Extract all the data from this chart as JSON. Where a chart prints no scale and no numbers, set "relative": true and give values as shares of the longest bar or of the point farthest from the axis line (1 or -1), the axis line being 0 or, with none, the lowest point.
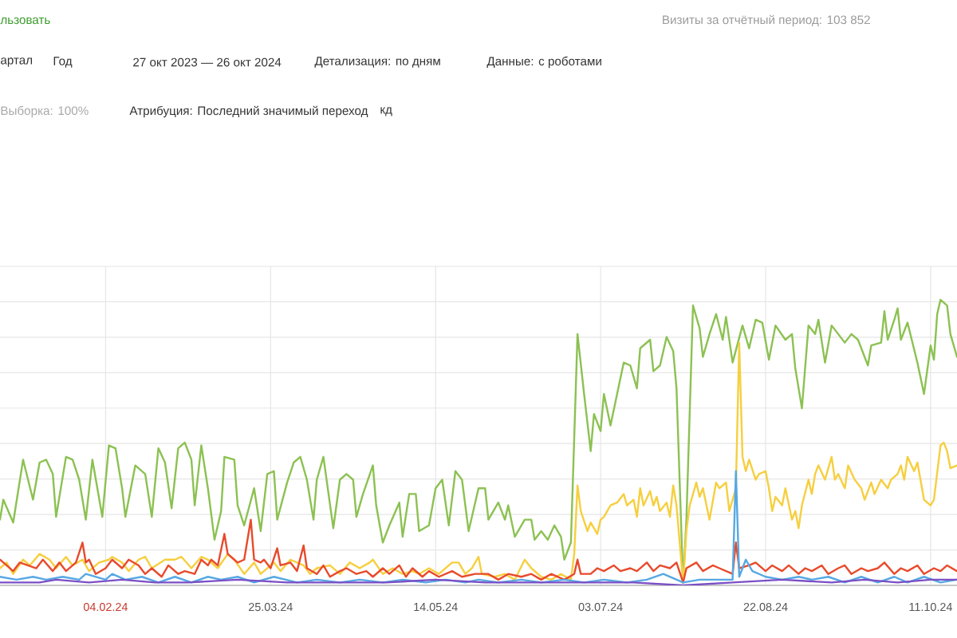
{
  "chart_data": {
    "type": "line",
    "relative": true,
    "grid": true,
    "xlim": [
      "2024-01-03",
      "2024-10-19"
    ],
    "xticks": [
      {
        "value": "2024-02-04",
        "label": "04.02.24"
      },
      {
        "value": "2024-03-25",
        "label": "25.03.24"
      },
      {
        "value": "2024-05-14",
        "label": "14.05.24"
      },
      {
        "value": "2024-07-03",
        "label": "03.07.24"
      },
      {
        "value": "2024-08-22",
        "label": "22.08.24"
      },
      {
        "value": "2024-10-11",
        "label": "11.10.24"
      }
    ],
    "annotations": [
      "льзовать",
      "Визиты за отчётный период: 103 852",
      "артал",
      "Год",
      "27 окт 2023 — 26 окт 2024",
      "Детализация: по дням",
      "Данные: с роботами",
      "Выборка: 100%",
      "Атрибуция: Последний значимый переход",
      "кд"
    ],
    "series": [
      {
        "color": "#8cc152",
        "x": [
          "2024-01-03",
          "2024-01-04",
          "2024-01-07",
          "2024-01-10",
          "2024-01-13",
          "2024-01-15",
          "2024-01-17",
          "2024-01-19",
          "2024-01-20",
          "2024-01-23",
          "2024-01-25",
          "2024-01-27",
          "2024-01-29",
          "2024-01-31",
          "2024-02-03",
          "2024-02-05",
          "2024-02-07",
          "2024-02-09",
          "2024-02-10",
          "2024-02-13",
          "2024-02-16",
          "2024-02-18",
          "2024-02-20",
          "2024-02-22",
          "2024-02-24",
          "2024-02-26",
          "2024-02-28",
          "2024-03-01",
          "2024-03-02",
          "2024-03-04",
          "2024-03-06",
          "2024-03-08",
          "2024-03-10",
          "2024-03-11",
          "2024-03-14",
          "2024-03-15",
          "2024-03-17",
          "2024-03-20",
          "2024-03-22",
          "2024-03-24",
          "2024-03-26",
          "2024-03-27",
          "2024-03-30",
          "2024-04-01",
          "2024-04-03",
          "2024-04-05",
          "2024-04-07",
          "2024-04-08",
          "2024-04-10",
          "2024-04-13",
          "2024-04-15",
          "2024-04-17",
          "2024-04-19",
          "2024-04-20",
          "2024-04-22",
          "2024-04-25",
          "2024-04-26",
          "2024-04-28",
          "2024-04-30",
          "2024-05-03",
          "2024-05-04",
          "2024-05-06",
          "2024-05-08",
          "2024-05-09",
          "2024-05-12",
          "2024-05-14",
          "2024-05-16",
          "2024-05-18",
          "2024-05-20",
          "2024-05-22",
          "2024-05-24",
          "2024-05-27",
          "2024-05-29",
          "2024-05-30",
          "2024-06-02",
          "2024-06-04",
          "2024-06-05",
          "2024-06-07",
          "2024-06-10",
          "2024-06-12",
          "2024-06-13",
          "2024-06-15",
          "2024-06-17",
          "2024-06-19",
          "2024-06-21",
          "2024-06-22",
          "2024-06-24",
          "2024-06-26",
          "2024-06-28",
          "2024-06-30",
          "2024-07-01",
          "2024-07-03",
          "2024-07-04",
          "2024-07-06",
          "2024-07-08",
          "2024-07-10",
          "2024-07-12",
          "2024-07-14",
          "2024-07-15",
          "2024-07-18",
          "2024-07-19",
          "2024-07-21",
          "2024-07-23",
          "2024-07-25",
          "2024-07-26",
          "2024-07-28",
          "2024-07-29",
          "2024-07-31",
          "2024-08-02",
          "2024-08-03",
          "2024-08-05",
          "2024-08-07",
          "2024-08-09",
          "2024-08-10",
          "2024-08-12",
          "2024-08-15",
          "2024-08-17",
          "2024-08-19",
          "2024-08-21",
          "2024-08-23",
          "2024-08-25",
          "2024-08-28",
          "2024-08-30",
          "2024-08-31",
          "2024-09-02",
          "2024-09-04",
          "2024-09-06",
          "2024-09-07",
          "2024-09-09",
          "2024-09-11",
          "2024-09-13",
          "2024-09-15",
          "2024-09-17",
          "2024-09-19",
          "2024-09-22",
          "2024-09-23",
          "2024-09-26",
          "2024-09-27",
          "2024-09-28",
          "2024-09-30",
          "2024-10-01",
          "2024-10-02",
          "2024-10-04",
          "2024-10-07",
          "2024-10-09",
          "2024-10-11",
          "2024-10-12",
          "2024-10-13",
          "2024-10-14",
          "2024-10-16",
          "2024-10-17",
          "2024-10-19"
        ],
        "values": [
          0.23,
          0.3,
          0.22,
          0.44,
          0.3,
          0.43,
          0.44,
          0.39,
          0.24,
          0.45,
          0.44,
          0.37,
          0.23,
          0.44,
          0.24,
          0.49,
          0.48,
          0.34,
          0.24,
          0.42,
          0.39,
          0.24,
          0.48,
          0.43,
          0.27,
          0.48,
          0.5,
          0.44,
          0.28,
          0.49,
          0.34,
          0.16,
          0.26,
          0.45,
          0.44,
          0.28,
          0.21,
          0.34,
          0.19,
          0.39,
          0.4,
          0.23,
          0.36,
          0.43,
          0.45,
          0.37,
          0.23,
          0.37,
          0.45,
          0.2,
          0.37,
          0.39,
          0.37,
          0.24,
          0.32,
          0.42,
          0.28,
          0.15,
          0.21,
          0.29,
          0.17,
          0.32,
          0.32,
          0.19,
          0.21,
          0.34,
          0.37,
          0.21,
          0.4,
          0.37,
          0.19,
          0.34,
          0.34,
          0.23,
          0.29,
          0.23,
          0.28,
          0.17,
          0.23,
          0.23,
          0.16,
          0.19,
          0.16,
          0.21,
          0.17,
          0.09,
          0.15,
          0.88,
          0.67,
          0.47,
          0.6,
          0.54,
          0.67,
          0.56,
          0.67,
          0.78,
          0.77,
          0.69,
          0.83,
          0.86,
          0.75,
          0.77,
          0.87,
          0.82,
          0.69,
          0.01,
          0.23,
          0.98,
          0.9,
          0.8,
          0.88,
          0.95,
          0.86,
          0.94,
          0.78,
          0.91,
          0.83,
          0.93,
          0.92,
          0.79,
          0.91,
          0.86,
          0.88,
          0.76,
          0.62,
          0.91,
          0.88,
          0.93,
          0.78,
          0.91,
          0.88,
          0.85,
          0.88,
          0.86,
          0.77,
          0.84,
          0.85,
          0.96,
          0.86,
          0.93,
          0.97,
          0.86,
          0.92,
          0.78,
          0.67,
          0.84,
          0.79,
          0.95,
          1.0,
          0.98,
          0.88,
          0.8
        ]
      },
      {
        "color": "#f6cf3f",
        "x": [
          "2024-01-03",
          "2024-01-05",
          "2024-01-07",
          "2024-01-10",
          "2024-01-12",
          "2024-01-15",
          "2024-01-18",
          "2024-01-20",
          "2024-01-23",
          "2024-01-25",
          "2024-01-28",
          "2024-01-30",
          "2024-02-02",
          "2024-02-05",
          "2024-02-06",
          "2024-02-09",
          "2024-02-11",
          "2024-02-14",
          "2024-02-16",
          "2024-02-18",
          "2024-02-22",
          "2024-02-25",
          "2024-02-27",
          "2024-03-01",
          "2024-03-04",
          "2024-03-06",
          "2024-03-09",
          "2024-03-12",
          "2024-03-14",
          "2024-03-17",
          "2024-03-20",
          "2024-03-22",
          "2024-03-26",
          "2024-03-28",
          "2024-03-31",
          "2024-04-04",
          "2024-04-06",
          "2024-04-08",
          "2024-04-12",
          "2024-04-15",
          "2024-04-18",
          "2024-04-21",
          "2024-04-24",
          "2024-04-25",
          "2024-04-28",
          "2024-05-01",
          "2024-05-04",
          "2024-05-07",
          "2024-05-09",
          "2024-05-12",
          "2024-05-15",
          "2024-05-19",
          "2024-05-21",
          "2024-05-23",
          "2024-05-25",
          "2024-05-27",
          "2024-05-28",
          "2024-06-01",
          "2024-06-04",
          "2024-06-07",
          "2024-06-10",
          "2024-06-12",
          "2024-06-15",
          "2024-06-18",
          "2024-06-21",
          "2024-06-24",
          "2024-06-25",
          "2024-06-26",
          "2024-06-27",
          "2024-06-29",
          "2024-06-30",
          "2024-07-02",
          "2024-07-03",
          "2024-07-04",
          "2024-07-06",
          "2024-07-08",
          "2024-07-10",
          "2024-07-11",
          "2024-07-13",
          "2024-07-14",
          "2024-07-15",
          "2024-07-16",
          "2024-07-18",
          "2024-07-19",
          "2024-07-20",
          "2024-07-21",
          "2024-07-23",
          "2024-07-24",
          "2024-07-25",
          "2024-07-26",
          "2024-07-28",
          "2024-07-29",
          "2024-07-30",
          "2024-08-01",
          "2024-08-02",
          "2024-08-03",
          "2024-08-05",
          "2024-08-07",
          "2024-08-08",
          "2024-08-10",
          "2024-08-11",
          "2024-08-13",
          "2024-08-14",
          "2024-08-15",
          "2024-08-16",
          "2024-08-17",
          "2024-08-19",
          "2024-08-20",
          "2024-08-22",
          "2024-08-23",
          "2024-08-24",
          "2024-08-25",
          "2024-08-27",
          "2024-08-28",
          "2024-08-30",
          "2024-08-31",
          "2024-09-01",
          "2024-09-02",
          "2024-09-04",
          "2024-09-05",
          "2024-09-06",
          "2024-09-07",
          "2024-09-09",
          "2024-09-10",
          "2024-09-11",
          "2024-09-12",
          "2024-09-13",
          "2024-09-15",
          "2024-09-16",
          "2024-09-18",
          "2024-09-20",
          "2024-09-21",
          "2024-09-23",
          "2024-09-24",
          "2024-09-26",
          "2024-09-28",
          "2024-09-29",
          "2024-10-01",
          "2024-10-02",
          "2024-10-03",
          "2024-10-04",
          "2024-10-06",
          "2024-10-07",
          "2024-10-09",
          "2024-10-11",
          "2024-10-12",
          "2024-10-14",
          "2024-10-15",
          "2024-10-16",
          "2024-10-17",
          "2024-10-19"
        ],
        "values": [
          0.06,
          0.08,
          0.04,
          0.09,
          0.07,
          0.11,
          0.09,
          0.06,
          0.1,
          0.07,
          0.09,
          0.05,
          0.08,
          0.09,
          0.1,
          0.08,
          0.05,
          0.09,
          0.1,
          0.06,
          0.09,
          0.09,
          0.1,
          0.06,
          0.1,
          0.09,
          0.06,
          0.11,
          0.09,
          0.04,
          0.08,
          0.04,
          0.08,
          0.05,
          0.09,
          0.07,
          0.04,
          0.06,
          0.07,
          0.04,
          0.08,
          0.06,
          0.08,
          0.09,
          0.04,
          0.06,
          0.04,
          0.05,
          0.04,
          0.06,
          0.04,
          0.08,
          0.08,
          0.04,
          0.06,
          0.1,
          0.04,
          0.03,
          0.04,
          0.02,
          0.09,
          0.06,
          0.03,
          0.02,
          0.04,
          0.02,
          0.11,
          0.35,
          0.26,
          0.19,
          0.22,
          0.18,
          0.23,
          0.24,
          0.28,
          0.29,
          0.32,
          0.28,
          0.3,
          0.24,
          0.34,
          0.28,
          0.33,
          0.28,
          0.31,
          0.26,
          0.29,
          0.24,
          0.35,
          0.28,
          0.01,
          0.19,
          0.28,
          0.36,
          0.31,
          0.34,
          0.23,
          0.36,
          0.34,
          0.36,
          0.26,
          0.34,
          0.85,
          0.45,
          0.4,
          0.44,
          0.37,
          0.39,
          0.4,
          0.34,
          0.26,
          0.31,
          0.28,
          0.34,
          0.23,
          0.26,
          0.2,
          0.28,
          0.37,
          0.32,
          0.39,
          0.42,
          0.37,
          0.41,
          0.45,
          0.37,
          0.39,
          0.34,
          0.42,
          0.37,
          0.34,
          0.3,
          0.36,
          0.32,
          0.37,
          0.34,
          0.37,
          0.39,
          0.42,
          0.37,
          0.45,
          0.4,
          0.43,
          0.3,
          0.28,
          0.3,
          0.49,
          0.5,
          0.47,
          0.41,
          0.42
        ]
      },
      {
        "color": "#e84a2c",
        "x": [
          "2024-01-03",
          "2024-01-07",
          "2024-01-09",
          "2024-01-14",
          "2024-01-16",
          "2024-01-19",
          "2024-01-21",
          "2024-01-23",
          "2024-01-26",
          "2024-01-28",
          "2024-01-29",
          "2024-01-30",
          "2024-02-01",
          "2024-02-04",
          "2024-02-06",
          "2024-02-09",
          "2024-02-11",
          "2024-02-14",
          "2024-02-16",
          "2024-02-18",
          "2024-02-21",
          "2024-02-23",
          "2024-02-26",
          "2024-02-28",
          "2024-03-02",
          "2024-03-04",
          "2024-03-06",
          "2024-03-07",
          "2024-03-09",
          "2024-03-11",
          "2024-03-12",
          "2024-03-14",
          "2024-03-15",
          "2024-03-17",
          "2024-03-19",
          "2024-03-20",
          "2024-03-22",
          "2024-03-23",
          "2024-03-25",
          "2024-03-27",
          "2024-03-28",
          "2024-03-31",
          "2024-04-02",
          "2024-04-04",
          "2024-04-05",
          "2024-04-08",
          "2024-04-10",
          "2024-04-12",
          "2024-04-15",
          "2024-04-17",
          "2024-04-20",
          "2024-04-23",
          "2024-04-25",
          "2024-04-28",
          "2024-04-30",
          "2024-05-03",
          "2024-05-05",
          "2024-05-07",
          "2024-05-10",
          "2024-05-12",
          "2024-05-15",
          "2024-05-19",
          "2024-05-22",
          "2024-05-26",
          "2024-05-30",
          "2024-06-02",
          "2024-06-05",
          "2024-06-09",
          "2024-06-12",
          "2024-06-15",
          "2024-06-18",
          "2024-06-22",
          "2024-06-25",
          "2024-06-26",
          "2024-06-27",
          "2024-06-30",
          "2024-07-02",
          "2024-07-04",
          "2024-07-07",
          "2024-07-09",
          "2024-07-12",
          "2024-07-14",
          "2024-07-17",
          "2024-07-19",
          "2024-07-21",
          "2024-07-24",
          "2024-07-26",
          "2024-07-28",
          "2024-07-29",
          "2024-08-01",
          "2024-08-03",
          "2024-08-06",
          "2024-08-08",
          "2024-08-12",
          "2024-08-13",
          "2024-08-14",
          "2024-08-17",
          "2024-08-19",
          "2024-08-22",
          "2024-08-24",
          "2024-08-27",
          "2024-08-29",
          "2024-09-01",
          "2024-09-03",
          "2024-09-05",
          "2024-09-08",
          "2024-09-10",
          "2024-09-13",
          "2024-09-15",
          "2024-09-17",
          "2024-09-20",
          "2024-09-22",
          "2024-09-25",
          "2024-09-27",
          "2024-09-30",
          "2024-10-02",
          "2024-10-04",
          "2024-10-07",
          "2024-10-09",
          "2024-10-12",
          "2024-10-14",
          "2024-10-16",
          "2024-10-19"
        ],
        "values": [
          0.09,
          0.05,
          0.08,
          0.06,
          0.09,
          0.05,
          0.08,
          0.05,
          0.08,
          0.15,
          0.08,
          0.09,
          0.04,
          0.06,
          0.09,
          0.06,
          0.09,
          0.07,
          0.04,
          0.06,
          0.03,
          0.07,
          0.04,
          0.05,
          0.04,
          0.09,
          0.07,
          0.09,
          0.07,
          0.18,
          0.11,
          0.09,
          0.08,
          0.09,
          0.23,
          0.09,
          0.08,
          0.09,
          0.06,
          0.13,
          0.07,
          0.08,
          0.05,
          0.14,
          0.06,
          0.04,
          0.07,
          0.03,
          0.05,
          0.06,
          0.04,
          0.05,
          0.03,
          0.06,
          0.04,
          0.07,
          0.03,
          0.06,
          0.03,
          0.05,
          0.03,
          0.05,
          0.03,
          0.04,
          0.04,
          0.02,
          0.04,
          0.03,
          0.04,
          0.02,
          0.04,
          0.02,
          0.04,
          0.09,
          0.04,
          0.04,
          0.06,
          0.05,
          0.07,
          0.05,
          0.06,
          0.05,
          0.08,
          0.05,
          0.07,
          0.06,
          0.08,
          0.01,
          0.06,
          0.08,
          0.05,
          0.07,
          0.06,
          0.04,
          0.15,
          0.06,
          0.07,
          0.08,
          0.05,
          0.07,
          0.05,
          0.07,
          0.04,
          0.06,
          0.05,
          0.07,
          0.04,
          0.06,
          0.07,
          0.04,
          0.06,
          0.05,
          0.06,
          0.08,
          0.04,
          0.06,
          0.05,
          0.07,
          0.04,
          0.06,
          0.05,
          0.07,
          0.05
        ]
      },
      {
        "color": "#56a8e3",
        "x": [
          "2024-01-03",
          "2024-01-08",
          "2024-01-13",
          "2024-01-17",
          "2024-01-22",
          "2024-01-27",
          "2024-01-29",
          "2024-02-04",
          "2024-02-06",
          "2024-02-10",
          "2024-02-15",
          "2024-02-20",
          "2024-02-25",
          "2024-03-01",
          "2024-03-06",
          "2024-03-10",
          "2024-03-15",
          "2024-03-20",
          "2024-03-26",
          "2024-04-02",
          "2024-04-08",
          "2024-04-15",
          "2024-04-21",
          "2024-04-28",
          "2024-05-04",
          "2024-05-11",
          "2024-05-17",
          "2024-05-23",
          "2024-05-27",
          "2024-06-02",
          "2024-06-09",
          "2024-06-15",
          "2024-06-22",
          "2024-06-28",
          "2024-07-04",
          "2024-07-11",
          "2024-07-17",
          "2024-07-22",
          "2024-07-28",
          "2024-08-02",
          "2024-08-07",
          "2024-08-12",
          "2024-08-13",
          "2024-08-14",
          "2024-08-16",
          "2024-08-18",
          "2024-08-22",
          "2024-08-27",
          "2024-09-01",
          "2024-09-05",
          "2024-09-10",
          "2024-09-15",
          "2024-09-20",
          "2024-09-25",
          "2024-09-30",
          "2024-10-04",
          "2024-10-09",
          "2024-10-14",
          "2024-10-19"
        ],
        "values": [
          0.03,
          0.02,
          0.03,
          0.02,
          0.03,
          0.02,
          0.04,
          0.02,
          0.04,
          0.02,
          0.03,
          0.01,
          0.03,
          0.01,
          0.03,
          0.02,
          0.03,
          0.01,
          0.03,
          0.01,
          0.02,
          0.01,
          0.02,
          0.01,
          0.02,
          0.01,
          0.02,
          0.01,
          0.02,
          0.01,
          0.02,
          0.01,
          0.02,
          0.01,
          0.02,
          0.01,
          0.02,
          0.04,
          0.01,
          0.02,
          0.02,
          0.02,
          0.4,
          0.03,
          0.09,
          0.05,
          0.03,
          0.02,
          0.03,
          0.02,
          0.03,
          0.01,
          0.03,
          0.01,
          0.03,
          0.01,
          0.03,
          0.01,
          0.02
        ]
      },
      {
        "color": "#7b4fc6",
        "x": [
          "2024-01-03",
          "2024-01-15",
          "2024-01-20",
          "2024-01-30",
          "2024-02-09",
          "2024-02-19",
          "2024-02-29",
          "2024-03-15",
          "2024-03-30",
          "2024-04-14",
          "2024-04-29",
          "2024-05-14",
          "2024-05-29",
          "2024-06-13",
          "2024-06-28",
          "2024-07-13",
          "2024-07-28",
          "2024-08-12",
          "2024-08-27",
          "2024-09-11",
          "2024-09-21",
          "2024-10-01",
          "2024-10-11",
          "2024-10-19"
        ],
        "values": [
          0.01,
          0.01,
          0.02,
          0.01,
          0.02,
          0.01,
          0.01,
          0.02,
          0.01,
          0.01,
          0.01,
          0.02,
          0.01,
          0.01,
          0.01,
          0.01,
          0,
          0.01,
          0.02,
          0.01,
          0.02,
          0.01,
          0.02,
          0.02
        ]
      }
    ]
  }
}
